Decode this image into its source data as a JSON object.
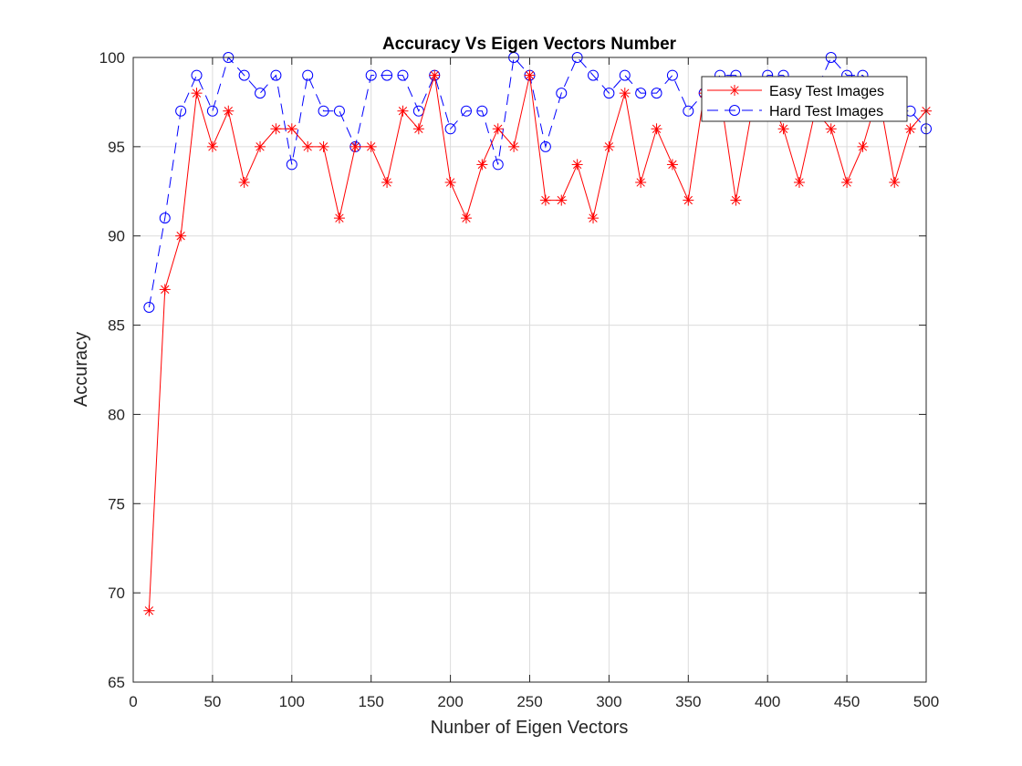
{
  "chart_data": {
    "type": "line",
    "title": "Accuracy Vs Eigen Vectors Number",
    "xlabel": "Nunber of Eigen Vectors",
    "ylabel": "Accuracy",
    "xlim": [
      0,
      500
    ],
    "ylim": [
      65,
      100
    ],
    "xticks": [
      0,
      50,
      100,
      150,
      200,
      250,
      300,
      350,
      400,
      450,
      500
    ],
    "yticks": [
      65,
      70,
      75,
      80,
      85,
      90,
      95,
      100
    ],
    "grid": true,
    "legend_position": "top-right",
    "x": [
      10,
      20,
      30,
      40,
      50,
      60,
      70,
      80,
      90,
      100,
      110,
      120,
      130,
      140,
      150,
      160,
      170,
      180,
      190,
      200,
      210,
      220,
      230,
      240,
      250,
      260,
      270,
      280,
      290,
      300,
      310,
      320,
      330,
      340,
      350,
      360,
      370,
      380,
      390,
      400,
      410,
      420,
      430,
      440,
      450,
      460,
      470,
      480,
      490,
      500
    ],
    "series": [
      {
        "name": "Easy Test Images",
        "color": "#ff0000",
        "line_style": "solid",
        "marker": "asterisk",
        "values": [
          69,
          87,
          90,
          98,
          95,
          97,
          93,
          95,
          96,
          96,
          95,
          95,
          91,
          95,
          95,
          93,
          97,
          96,
          99,
          93,
          91,
          94,
          96,
          95,
          99,
          92,
          92,
          94,
          91,
          95,
          98,
          93,
          96,
          94,
          92,
          98,
          98,
          92,
          97,
          98,
          96,
          93,
          97,
          96,
          93,
          95,
          98,
          93,
          96,
          97
        ]
      },
      {
        "name": "Hard Test Images",
        "color": "#0000ff",
        "line_style": "dashed",
        "marker": "circle",
        "values": [
          86,
          91,
          97,
          99,
          97,
          100,
          99,
          98,
          99,
          94,
          99,
          97,
          97,
          95,
          99,
          99,
          99,
          97,
          99,
          96,
          97,
          97,
          94,
          100,
          99,
          95,
          98,
          100,
          99,
          98,
          99,
          98,
          98,
          99,
          97,
          98,
          99,
          99,
          98,
          99,
          99,
          98,
          98,
          100,
          99,
          99,
          98,
          97,
          97,
          96
        ]
      }
    ]
  }
}
